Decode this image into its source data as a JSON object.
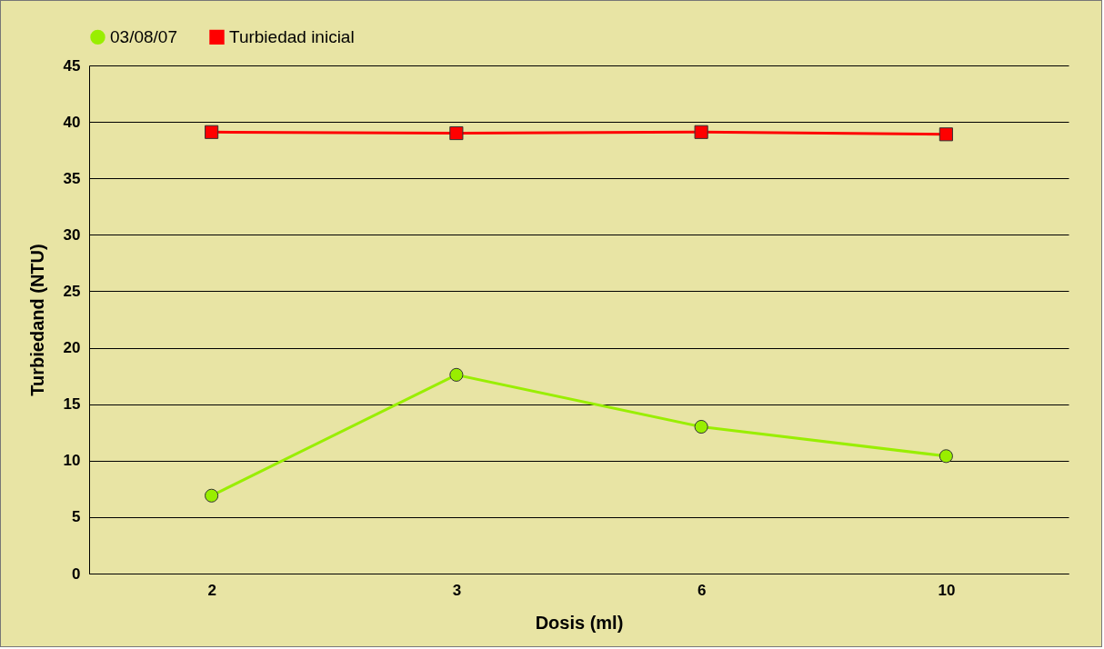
{
  "chart_data": {
    "type": "line",
    "xlabel": "Dosis (ml)",
    "ylabel": "Turbiedand (NTU)",
    "categories": [
      "2",
      "3",
      "6",
      "10"
    ],
    "series": [
      {
        "name": "03/08/07",
        "color": "#99ee00",
        "marker": "circle",
        "values": [
          6.9,
          17.6,
          13.0,
          10.4
        ]
      },
      {
        "name": "Turbiedad inicial",
        "color": "#ff0000",
        "marker": "square",
        "values": [
          39.1,
          39.0,
          39.1,
          38.9
        ]
      }
    ],
    "ylim": [
      0,
      45
    ],
    "yticks": [
      0,
      5,
      10,
      15,
      20,
      25,
      30,
      35,
      40,
      45
    ],
    "grid": "y",
    "legend": "top",
    "line_style": "solid"
  }
}
